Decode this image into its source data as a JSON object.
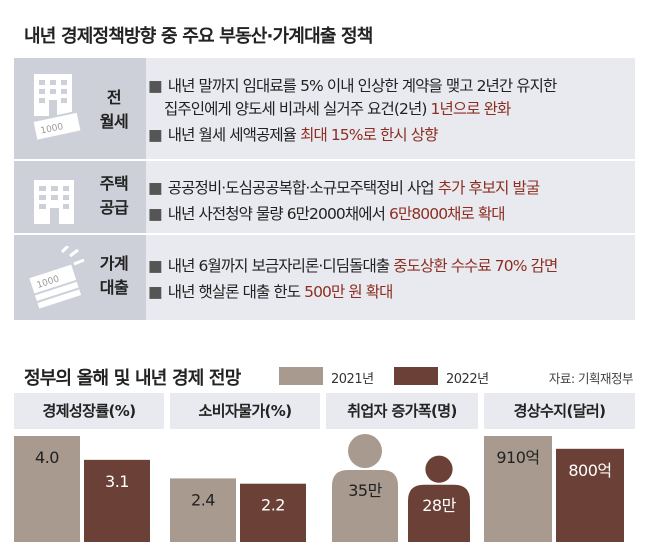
{
  "header": {
    "title": "내년 경제정책방향 중 주요 부동산·가계대출 정책"
  },
  "policies": [
    {
      "label_lines": [
        "전",
        "월세"
      ],
      "icon": "building-with-money-icon",
      "items": [
        {
          "lines": [
            [
              {
                "t": "내년 말까지 임대료를 5% 이내 인상한 계약을 맺고 2년간 유지한",
                "hl": false
              }
            ],
            [
              {
                "t": "집주인에게 양도세 비과세 실거주 요건(2년) ",
                "hl": false
              },
              {
                "t": "1년으로 완화",
                "hl": true
              }
            ]
          ]
        },
        {
          "lines": [
            [
              {
                "t": "내년 월세 세액공제율 ",
                "hl": false
              },
              {
                "t": "최대 15%로 한시 상향",
                "hl": true
              }
            ]
          ]
        }
      ]
    },
    {
      "label_lines": [
        "주택",
        "공급"
      ],
      "icon": "apartment-building-icon",
      "items": [
        {
          "lines": [
            [
              {
                "t": "공공정비·도심공공복합·소규모주택정비 사업 ",
                "hl": false
              },
              {
                "t": "추가 후보지 발굴",
                "hl": true
              }
            ]
          ]
        },
        {
          "lines": [
            [
              {
                "t": "내년 사전청약 물량 6만2000채에서 ",
                "hl": false
              },
              {
                "t": "6만8000채로 확대",
                "hl": true
              }
            ]
          ]
        }
      ]
    },
    {
      "label_lines": [
        "가계",
        "대출"
      ],
      "icon": "money-stack-icon",
      "items": [
        {
          "lines": [
            [
              {
                "t": "내년 6월까지 보금자리론·디딤돌대출 ",
                "hl": false
              },
              {
                "t": "중도상환 수수료 70% 감면",
                "hl": true
              }
            ]
          ]
        },
        {
          "lines": [
            [
              {
                "t": "내년 햇살론 대출 한도 ",
                "hl": false
              },
              {
                "t": "500만 원 확대",
                "hl": true
              }
            ]
          ]
        }
      ]
    }
  ],
  "bullet": "■",
  "outlook": {
    "title": "정부의 올해 및 내년 경제 전망",
    "source": "자료: 기획재정부",
    "legend": [
      {
        "label": "2021년",
        "color": "#a89a8e"
      },
      {
        "label": "2022년",
        "color": "#6b4036"
      }
    ]
  },
  "colors": {
    "highlight": "#8c2f22",
    "series_2021": "#a89a8e",
    "series_2022": "#6b4036",
    "panel_bg": "#e9eaef",
    "label_bg": "#cdd0d9"
  },
  "chart_data": [
    {
      "type": "bar",
      "title": "경제성장률(%)",
      "categories": [
        "2021년",
        "2022년"
      ],
      "values": [
        4.0,
        3.1
      ],
      "labels": [
        "4.0",
        "3.1"
      ]
    },
    {
      "type": "bar",
      "title": "소비자물가(%)",
      "categories": [
        "2021년",
        "2022년"
      ],
      "values": [
        2.4,
        2.2
      ],
      "labels": [
        "2.4",
        "2.2"
      ]
    },
    {
      "type": "pictogram",
      "title": "취업자 증가폭(명)",
      "categories": [
        "2021년",
        "2022년"
      ],
      "values": [
        350000,
        280000
      ],
      "labels": [
        "35만",
        "28만"
      ]
    },
    {
      "type": "bar",
      "title": "경상수지(달러)",
      "categories": [
        "2021년",
        "2022년"
      ],
      "values": [
        91000000000,
        80000000000
      ],
      "labels": [
        "910억",
        "800억"
      ]
    }
  ]
}
